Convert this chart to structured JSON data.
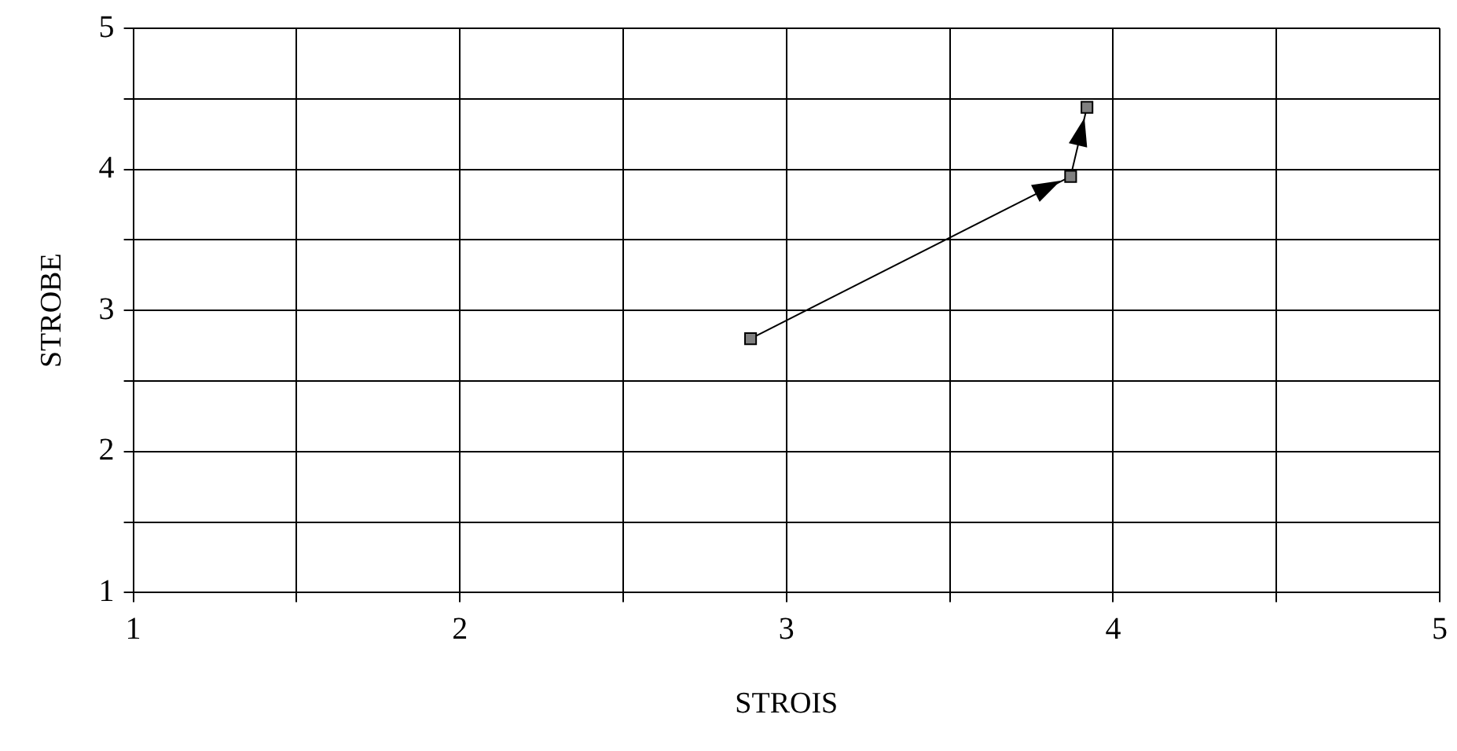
{
  "chart_data": {
    "type": "line",
    "xlabel": "STROIS",
    "ylabel": "STROBE",
    "x": [
      2.89,
      3.87,
      3.92
    ],
    "series": [
      {
        "color": "#808080",
        "values": [
          2.8,
          3.95,
          4.44
        ]
      }
    ],
    "marker": "square",
    "line_style": "solid",
    "grid": true,
    "legend": false,
    "xlim": [
      1,
      5
    ],
    "xticks": [
      1,
      {
        "value": 1.5,
        "label": null
      },
      2,
      {
        "value": 2.5,
        "label": null
      },
      3,
      {
        "value": 3.5,
        "label": null
      },
      4,
      {
        "value": 4.5,
        "label": null
      },
      5
    ],
    "ylim": [
      1,
      5
    ],
    "yticks": [
      1,
      {
        "value": 1.5,
        "label": null
      },
      2,
      {
        "value": 2.5,
        "label": null
      },
      3,
      {
        "value": 3.5,
        "label": null
      },
      4,
      {
        "value": 4.5,
        "label": null
      },
      5
    ]
  }
}
